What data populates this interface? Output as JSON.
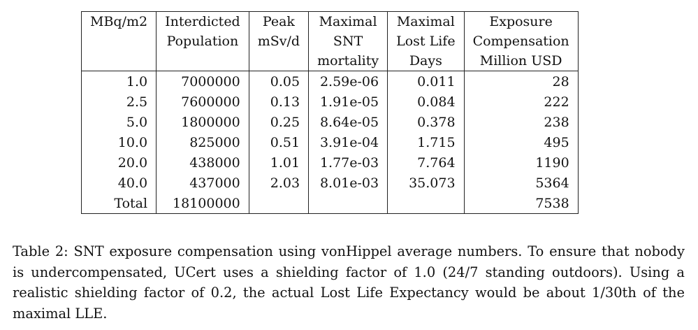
{
  "table": {
    "headers": [
      [
        "MBq/m2",
        "Interdicted",
        "Peak",
        "Maximal",
        "Maximal",
        "Exposure"
      ],
      [
        "",
        "Population",
        "mSv/d",
        "SNT",
        "Lost Life",
        "Compensation"
      ],
      [
        "",
        "",
        "",
        "mortality",
        "Days",
        "Million USD"
      ]
    ],
    "rows": [
      [
        "1.0",
        "7000000",
        "0.05",
        "2.59e-06",
        "0.011",
        "28"
      ],
      [
        "2.5",
        "7600000",
        "0.13",
        "1.91e-05",
        "0.084",
        "222"
      ],
      [
        "5.0",
        "1800000",
        "0.25",
        "8.64e-05",
        "0.378",
        "238"
      ],
      [
        "10.0",
        "825000",
        "0.51",
        "3.91e-04",
        "1.715",
        "495"
      ],
      [
        "20.0",
        "438000",
        "1.01",
        "1.77e-03",
        "7.764",
        "1190"
      ],
      [
        "40.0",
        "437000",
        "2.03",
        "8.01e-03",
        "35.073",
        "5364"
      ],
      [
        "Total",
        "18100000",
        "",
        "",
        "",
        "7538"
      ]
    ]
  },
  "caption": "Table 2: SNT exposure compensation using vonHippel average numbers. To ensure that nobody is undercompensated, UCert uses a shielding factor of 1.0 (24/7 standing outdoors). Using a realistic shielding factor of 0.2, the actual Lost Life Expectancy would be about 1/30th of the maximal LLE."
}
